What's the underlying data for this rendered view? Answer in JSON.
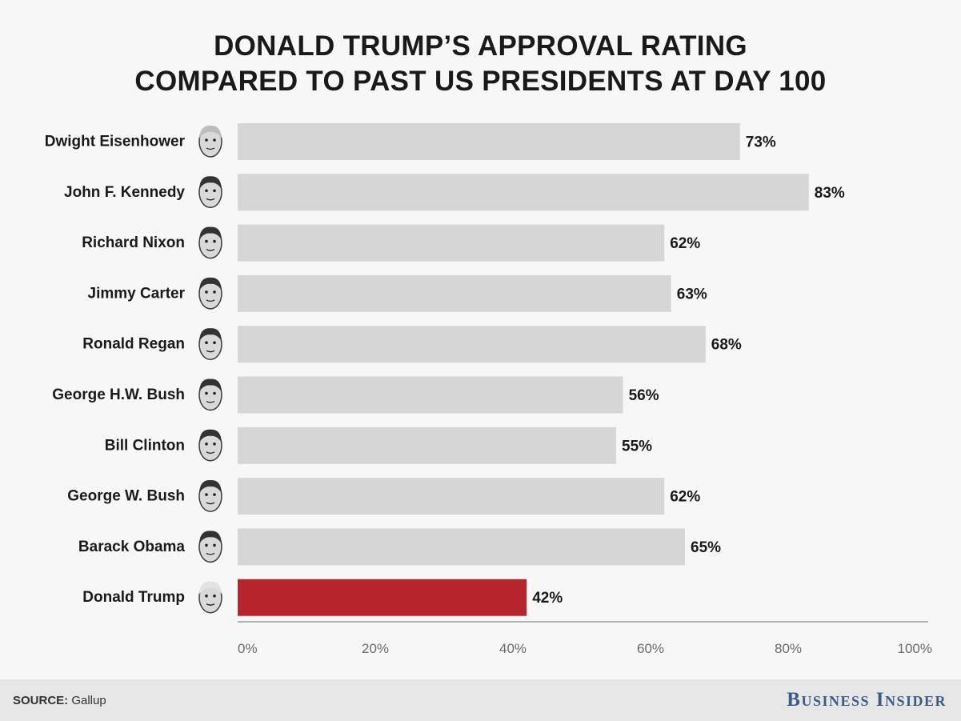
{
  "title": {
    "line1": "DONALD TRUMP’S APPROVAL RATING",
    "line2": "COMPARED TO PAST US PRESIDENTS AT DAY 100"
  },
  "footer": {
    "source_label": "SOURCE:",
    "source_value": "Gallup",
    "brand": "Business Insider"
  },
  "colors": {
    "bar_default": "#d6d6d6",
    "bar_highlight": "#b5252b",
    "axis": "#b3b3b3",
    "tick_text": "#6a6a6a"
  },
  "chart_data": {
    "type": "bar",
    "orientation": "horizontal",
    "title": "DONALD TRUMP’S APPROVAL RATING COMPARED TO PAST US PRESIDENTS AT DAY 100",
    "categories": [
      "Dwight Eisenhower",
      "John F. Kennedy",
      "Richard Nixon",
      "Jimmy Carter",
      "Ronald Regan",
      "George H.W. Bush",
      "Bill Clinton",
      "George W. Bush",
      "Barack Obama",
      "Donald Trump"
    ],
    "values": [
      73,
      83,
      62,
      63,
      68,
      56,
      55,
      62,
      65,
      42
    ],
    "value_suffix": "%",
    "highlight_index": 9,
    "xlim": [
      0,
      100
    ],
    "xticks": [
      0,
      20,
      40,
      60,
      80,
      100
    ],
    "xtick_labels": [
      "0%",
      "20%",
      "40%",
      "60%",
      "80%",
      "100%"
    ],
    "xlabel": "",
    "ylabel": "",
    "grid": false,
    "portrait_icons": [
      "eisenhower-portrait-icon",
      "kennedy-portrait-icon",
      "nixon-portrait-icon",
      "carter-portrait-icon",
      "reagan-portrait-icon",
      "hw-bush-portrait-icon",
      "clinton-portrait-icon",
      "w-bush-portrait-icon",
      "obama-portrait-icon",
      "trump-portrait-icon"
    ]
  }
}
